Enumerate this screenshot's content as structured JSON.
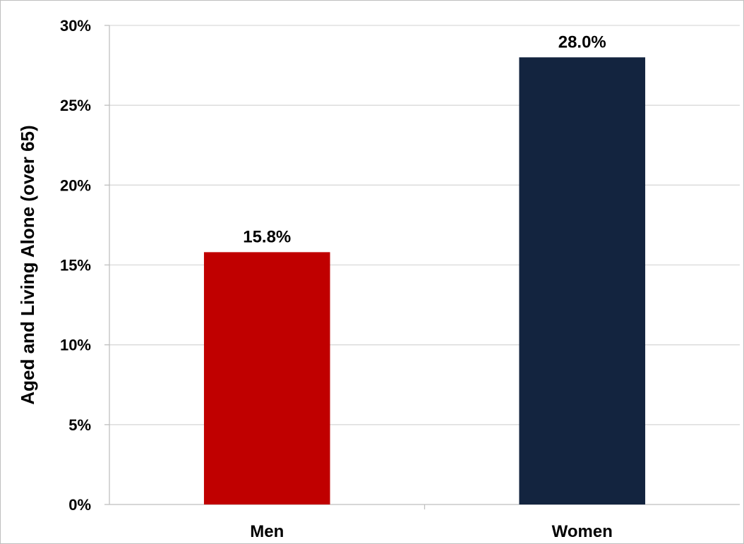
{
  "chart_data": {
    "type": "bar",
    "title": "",
    "xlabel": "",
    "ylabel": "Aged and Living Alone (over 65)",
    "categories": [
      "Men",
      "Women"
    ],
    "values": [
      15.8,
      28.0
    ],
    "data_labels": [
      "15.8%",
      "28.0%"
    ],
    "bar_colors": [
      "#C00000",
      "#13243F"
    ],
    "ylim": [
      0,
      30
    ],
    "yticks": [
      0,
      5,
      10,
      15,
      20,
      25,
      30
    ],
    "ytick_labels": [
      "0%",
      "5%",
      "10%",
      "15%",
      "20%",
      "25%",
      "30%"
    ],
    "grid": true,
    "legend": "none"
  }
}
